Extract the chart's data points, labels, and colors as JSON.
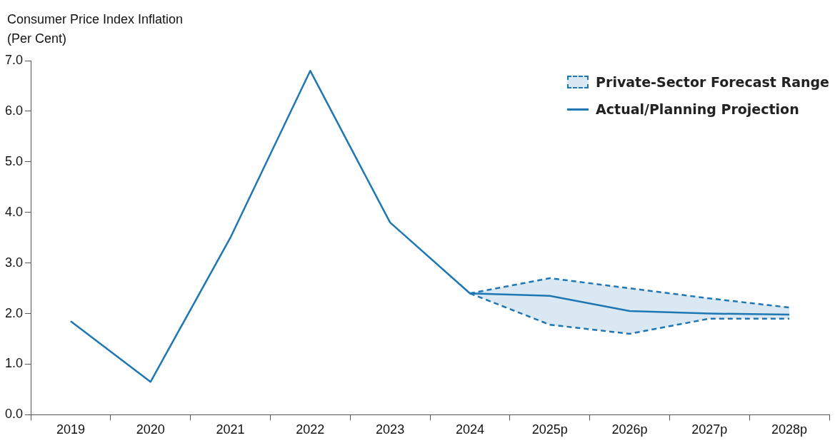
{
  "chart_data": {
    "type": "line",
    "ylabel": "Consumer Price Index Inflation (Per Cent)",
    "categories": [
      "2019",
      "2020",
      "2021",
      "2022",
      "2023",
      "2024",
      "2025p",
      "2026p",
      "2027p",
      "2028p"
    ],
    "series": [
      {
        "name": "Private-Sector Forecast Range",
        "color": "#1f77b4",
        "line_style": "dashed",
        "values": [
          null,
          null,
          null,
          null,
          null,
          2.4,
          2.7,
          2.5,
          2.3,
          2.12
        ],
        "lower": [
          null,
          null,
          null,
          null,
          null,
          2.4,
          1.78,
          1.6,
          1.9,
          1.9
        ],
        "upper": [
          null,
          null,
          null,
          null,
          null,
          2.4,
          2.7,
          2.5,
          2.3,
          2.12
        ]
      },
      {
        "color": "#1f77b4",
        "line_style": "dashed",
        "values": [
          null,
          null,
          null,
          null,
          null,
          2.4,
          1.78,
          1.6,
          1.9,
          1.9
        ]
      },
      {
        "name": "Actual/Planning Projection",
        "color": "#1f77b4",
        "line_style": "solid",
        "values": [
          1.85,
          0.65,
          3.5,
          6.8,
          3.8,
          2.4,
          2.35,
          2.05,
          2.0,
          1.98
        ]
      }
    ],
    "ylim": [
      0,
      7
    ],
    "yticks": [
      {
        "value": 0,
        "label": "0.0"
      },
      {
        "value": 1,
        "label": "1.0"
      },
      {
        "value": 2,
        "label": "2.0"
      },
      {
        "value": 3,
        "label": "3.0"
      },
      {
        "value": 4,
        "label": "4.0"
      },
      {
        "value": 5,
        "label": "5.0"
      },
      {
        "value": 6,
        "label": "6.0"
      },
      {
        "value": 7,
        "label": "7.0"
      }
    ],
    "grid": false,
    "legend": "top right",
    "marker": "none"
  }
}
